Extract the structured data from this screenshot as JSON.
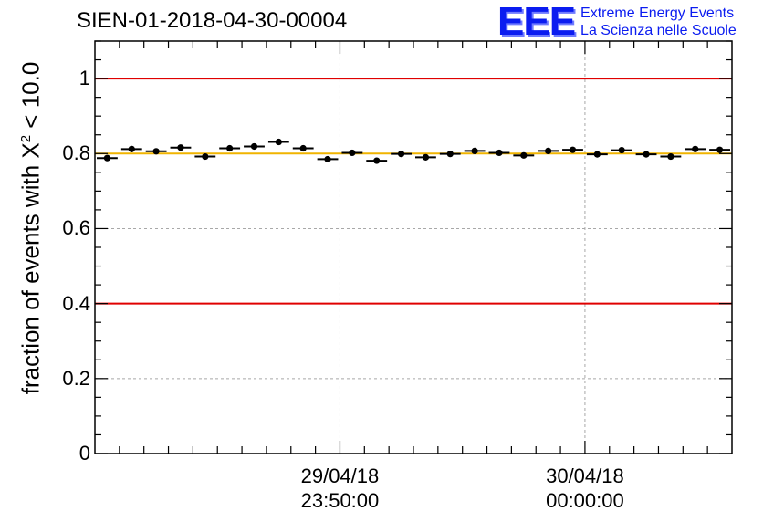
{
  "header": {
    "run_id": "SIEN-01-2018-04-30-00004",
    "logo_mark": "EEE",
    "logo_line1": "Extreme Energy Events",
    "logo_line2": "La Scienza nelle Scuole"
  },
  "chart_data": {
    "type": "scatter",
    "title": "SIEN-01-2018-04-30-00004",
    "xlabel": "",
    "ylabel": {
      "prefix": "fraction of events with ",
      "symbol": "X",
      "superscript": "2",
      "suffix": " < 10.0"
    },
    "ylim": [
      0,
      1.1
    ],
    "y_ticks": [
      "0",
      "0.2",
      "0.4",
      "0.6",
      "0.8",
      "1"
    ],
    "x_ticks": [
      {
        "date": "29/04/18",
        "time": "23:50:00",
        "bin": 10
      },
      {
        "date": "30/04/18",
        "time": "00:00:00",
        "bin": 20
      }
    ],
    "grid": true,
    "n_bins": 26,
    "series": [
      {
        "name": "fraction",
        "values": [
          0.788,
          0.812,
          0.806,
          0.816,
          0.792,
          0.814,
          0.819,
          0.831,
          0.814,
          0.785,
          0.802,
          0.781,
          0.799,
          0.79,
          0.799,
          0.807,
          0.802,
          0.795,
          0.807,
          0.81,
          0.798,
          0.809,
          0.798,
          0.792,
          0.812,
          0.81
        ]
      }
    ],
    "reference_lines": [
      {
        "y": 1.0,
        "color": "#e00000"
      },
      {
        "y": 0.4,
        "color": "#e00000"
      },
      {
        "y": 0.8,
        "color": "#f0b400"
      }
    ]
  }
}
